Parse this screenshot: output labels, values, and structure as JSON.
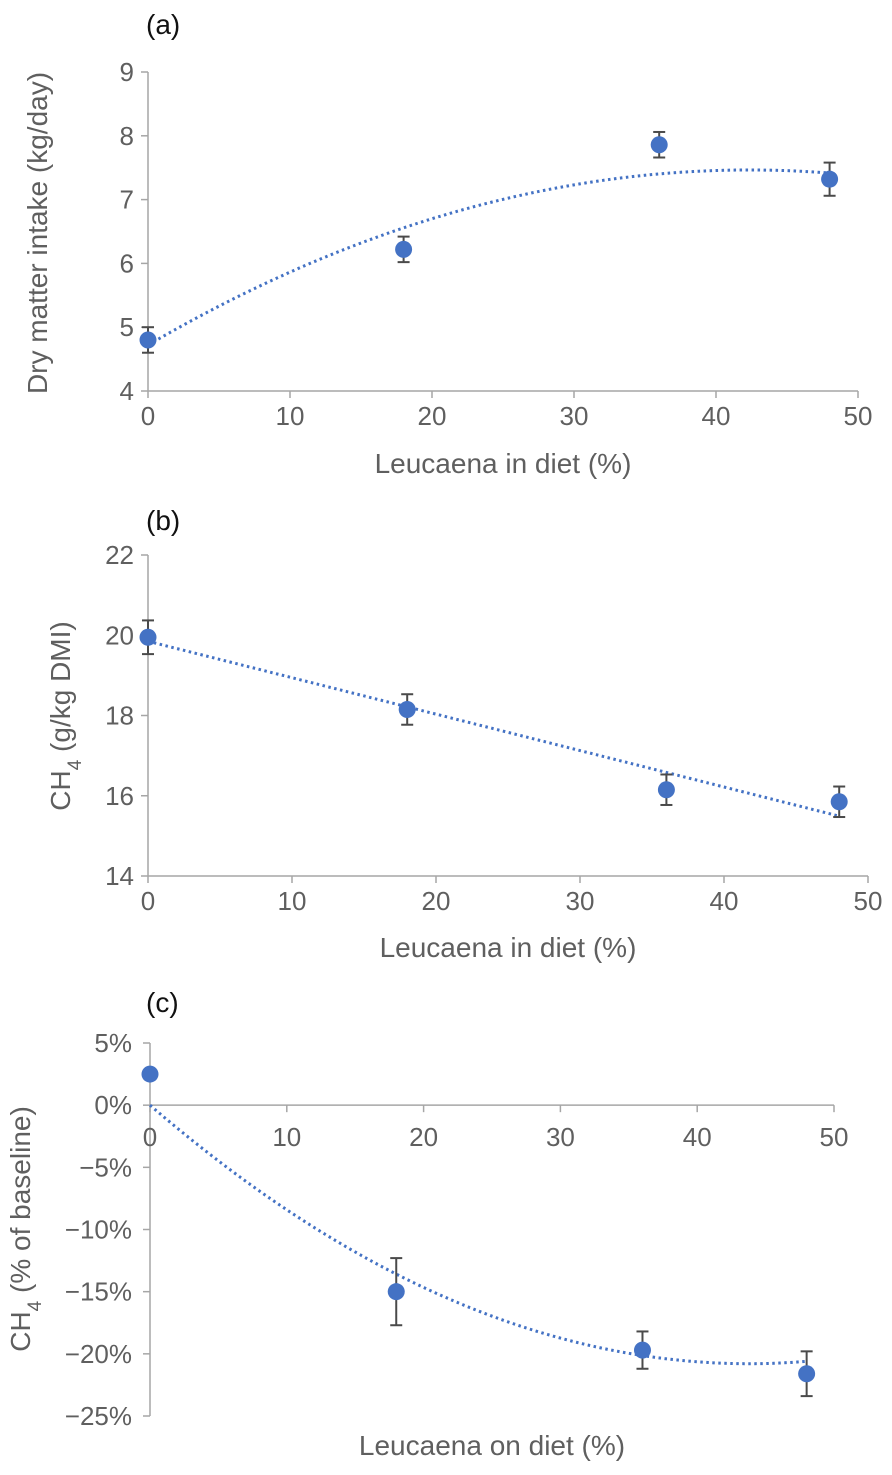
{
  "chart_data": [
    {
      "type": "scatter",
      "panel_label": "(a)",
      "xlabel": "Leucaena in diet (%)",
      "ylabel": "Dry matter intake (kg/day)",
      "xlim": [
        0,
        50
      ],
      "ylim": [
        4,
        9
      ],
      "x_ticks": [
        0,
        10,
        20,
        30,
        40,
        50
      ],
      "x_tick_labels": [
        "0",
        "10",
        "20",
        "30",
        "40",
        "50"
      ],
      "y_ticks": [
        4,
        5,
        6,
        7,
        8,
        9
      ],
      "y_tick_labels": [
        "4",
        "5",
        "6",
        "7",
        "8",
        "9"
      ],
      "x_axis_at": 4,
      "grid": false,
      "color": "#4472c4",
      "points": [
        {
          "x": 0,
          "y": 4.8,
          "err": 0.2
        },
        {
          "x": 18,
          "y": 6.22,
          "err": 0.2
        },
        {
          "x": 36,
          "y": 7.86,
          "err": 0.2
        },
        {
          "x": 48,
          "y": 7.32,
          "err": 0.26
        }
      ],
      "trendline": {
        "type": "polynomial",
        "order": 2,
        "coefficients": [
          4.72,
          0.1296,
          -0.00153
        ]
      }
    },
    {
      "type": "scatter",
      "panel_label": "(b)",
      "xlabel": "Leucaena in diet (%)",
      "ylabel_main": "CH",
      "ylabel_sub": "4",
      "ylabel_rest": " (g/kg DMI)",
      "xlim": [
        0,
        50
      ],
      "ylim": [
        14,
        22
      ],
      "x_ticks": [
        0,
        10,
        20,
        30,
        40,
        50
      ],
      "x_tick_labels": [
        "0",
        "10",
        "20",
        "30",
        "40",
        "50"
      ],
      "y_ticks": [
        14,
        16,
        18,
        20,
        22
      ],
      "y_tick_labels": [
        "14",
        "16",
        "18",
        "20",
        "22"
      ],
      "x_axis_at": 14,
      "grid": false,
      "color": "#4472c4",
      "points": [
        {
          "x": 0,
          "y": 19.95,
          "err": 0.42
        },
        {
          "x": 18,
          "y": 18.15,
          "err": 0.38
        },
        {
          "x": 36,
          "y": 16.15,
          "err": 0.38
        },
        {
          "x": 48,
          "y": 15.85,
          "err": 0.38
        }
      ],
      "trendline": {
        "type": "polynomial",
        "order": 2,
        "coefficients": [
          19.85,
          -0.0908,
          0
        ]
      }
    },
    {
      "type": "scatter",
      "panel_label": "(c)",
      "xlabel": "Leucaena on diet (%)",
      "ylabel_main": "CH",
      "ylabel_sub": "4",
      "ylabel_rest": " (% of baseline)",
      "xlim": [
        0,
        50
      ],
      "ylim": [
        -25,
        5
      ],
      "x_ticks": [
        0,
        10,
        20,
        30,
        40,
        50
      ],
      "x_tick_labels": [
        "0",
        "10",
        "20",
        "30",
        "40",
        "50"
      ],
      "y_ticks": [
        -25,
        -20,
        -15,
        -10,
        -5,
        0,
        5
      ],
      "y_tick_labels": [
        "−25%",
        "−20%",
        "−15%",
        "−10%",
        "−5%",
        "0%",
        "5%"
      ],
      "x_axis_at": 0,
      "grid": false,
      "color": "#4472c4",
      "points": [
        {
          "x": 0,
          "y": 2.5,
          "err": 0
        },
        {
          "x": 18,
          "y": -15,
          "err": 2.7
        },
        {
          "x": 36,
          "y": -19.7,
          "err": 1.5
        },
        {
          "x": 48,
          "y": -21.6,
          "err": 1.8
        }
      ],
      "trendline": {
        "type": "polynomial",
        "order": 2,
        "coefficients": [
          0,
          -0.95,
          0.01085
        ]
      }
    }
  ]
}
